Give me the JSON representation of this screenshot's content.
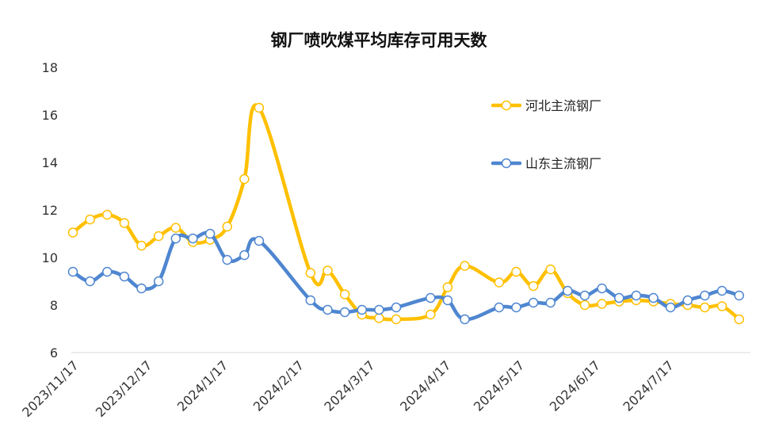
{
  "chart_data": {
    "type": "line",
    "title": "钢厂喷吹煤平均库存可用天数",
    "ylim": [
      6,
      18
    ],
    "yticks": [
      6,
      8,
      10,
      12,
      14,
      16,
      18
    ],
    "xrange": [
      "2023-11-17",
      "2024-08-18"
    ],
    "xtick_labels": [
      {
        "date": "2023-11-17",
        "label": "2023/11/17"
      },
      {
        "date": "2023-12-17",
        "label": "2023/12/17"
      },
      {
        "date": "2024-01-17",
        "label": "2024/1/17"
      },
      {
        "date": "2024-02-17",
        "label": "2024/2/17"
      },
      {
        "date": "2024-03-17",
        "label": "2024/3/17"
      },
      {
        "date": "2024-04-17",
        "label": "2024/4/17"
      },
      {
        "date": "2024-05-17",
        "label": "2024/5/17"
      },
      {
        "date": "2024-06-17",
        "label": "2024/6/17"
      },
      {
        "date": "2024-07-17",
        "label": "2024/7/17"
      }
    ],
    "grid": false,
    "legend_position": "top-right",
    "series": [
      {
        "name": "河北主流钢厂",
        "color": "#FFC000",
        "x": [
          "2023-11-17",
          "2023-11-24",
          "2023-12-01",
          "2023-12-08",
          "2023-12-15",
          "2023-12-22",
          "2023-12-29",
          "2024-01-05",
          "2024-01-12",
          "2024-01-19",
          "2024-01-26",
          "2024-02-01",
          "2024-02-22",
          "2024-02-29",
          "2024-03-07",
          "2024-03-14",
          "2024-03-21",
          "2024-03-28",
          "2024-04-11",
          "2024-04-18",
          "2024-04-25",
          "2024-05-09",
          "2024-05-16",
          "2024-05-23",
          "2024-05-30",
          "2024-06-06",
          "2024-06-13",
          "2024-06-20",
          "2024-06-27",
          "2024-07-04",
          "2024-07-11",
          "2024-07-18",
          "2024-07-25",
          "2024-08-01",
          "2024-08-08",
          "2024-08-15"
        ],
        "y": [
          11.05,
          11.6,
          11.8,
          11.45,
          10.5,
          10.9,
          11.25,
          10.65,
          10.75,
          11.3,
          13.3,
          16.3,
          9.35,
          9.45,
          8.45,
          7.6,
          7.45,
          7.4,
          7.6,
          8.75,
          9.65,
          8.95,
          9.4,
          8.8,
          9.5,
          8.5,
          8.0,
          8.05,
          8.15,
          8.2,
          8.15,
          8.05,
          8.0,
          7.9,
          7.95,
          7.4
        ]
      },
      {
        "name": "山东主流钢厂",
        "color": "#4F86D0",
        "x": [
          "2023-11-17",
          "2023-11-24",
          "2023-12-01",
          "2023-12-08",
          "2023-12-15",
          "2023-12-22",
          "2023-12-29",
          "2024-01-05",
          "2024-01-12",
          "2024-01-19",
          "2024-01-26",
          "2024-02-01",
          "2024-02-22",
          "2024-02-29",
          "2024-03-07",
          "2024-03-14",
          "2024-03-21",
          "2024-03-28",
          "2024-04-11",
          "2024-04-18",
          "2024-04-25",
          "2024-05-09",
          "2024-05-16",
          "2024-05-23",
          "2024-05-30",
          "2024-06-06",
          "2024-06-13",
          "2024-06-20",
          "2024-06-27",
          "2024-07-04",
          "2024-07-11",
          "2024-07-18",
          "2024-07-25",
          "2024-08-01",
          "2024-08-08",
          "2024-08-15"
        ],
        "y": [
          9.4,
          9.0,
          9.4,
          9.2,
          8.7,
          9.0,
          10.8,
          10.8,
          11.0,
          9.9,
          10.1,
          10.7,
          8.2,
          7.8,
          7.7,
          7.8,
          7.8,
          7.9,
          8.3,
          8.2,
          7.4,
          7.9,
          7.9,
          8.1,
          8.1,
          8.6,
          8.4,
          8.7,
          8.3,
          8.4,
          8.3,
          7.9,
          8.2,
          8.4,
          8.6,
          8.4
        ]
      }
    ]
  }
}
